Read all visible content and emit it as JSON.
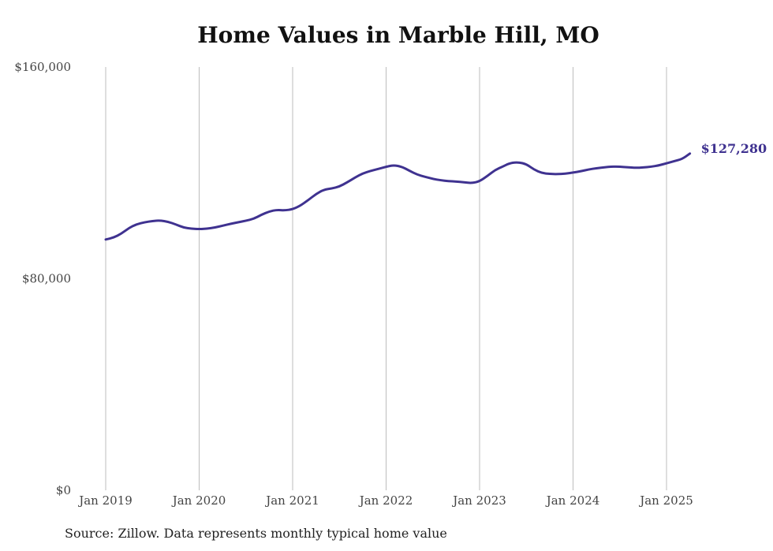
{
  "chart_data": {
    "type": "line",
    "title": "Home Values in Marble Hill, MO",
    "xlabel": "",
    "ylabel": "",
    "ylim": [
      0,
      160000
    ],
    "y_ticks": [
      {
        "value": 0,
        "label": "$0"
      },
      {
        "value": 80000,
        "label": "$80,000"
      },
      {
        "value": 160000,
        "label": "$160,000"
      }
    ],
    "x_ticks": [
      {
        "value": 2019.0,
        "label": "Jan 2019"
      },
      {
        "value": 2020.0,
        "label": "Jan 2020"
      },
      {
        "value": 2021.0,
        "label": "Jan 2021"
      },
      {
        "value": 2022.0,
        "label": "Jan 2022"
      },
      {
        "value": 2023.0,
        "label": "Jan 2023"
      },
      {
        "value": 2024.0,
        "label": "Jan 2024"
      },
      {
        "value": 2025.0,
        "label": "Jan 2025"
      }
    ],
    "xlim": [
      2019.0,
      2025.25
    ],
    "grid": "vertical",
    "line_color": "#3f3290",
    "end_label": "$127,280",
    "series": [
      {
        "x": [
          2019.0,
          2019.083,
          2019.167,
          2019.25,
          2019.333,
          2019.417,
          2019.5,
          2019.583,
          2019.667,
          2019.75,
          2019.833,
          2019.917,
          2020.0,
          2020.083,
          2020.167,
          2020.25,
          2020.333,
          2020.417,
          2020.5,
          2020.583,
          2020.667,
          2020.75,
          2020.833,
          2020.917,
          2021.0,
          2021.083,
          2021.167,
          2021.25,
          2021.333,
          2021.417,
          2021.5,
          2021.583,
          2021.667,
          2021.75,
          2021.833,
          2021.917,
          2022.0,
          2022.083,
          2022.167,
          2022.25,
          2022.333,
          2022.417,
          2022.5,
          2022.583,
          2022.667,
          2022.75,
          2022.833,
          2022.917,
          2023.0,
          2023.083,
          2023.167,
          2023.25,
          2023.333,
          2023.417,
          2023.5,
          2023.583,
          2023.667,
          2023.75,
          2023.833,
          2023.917,
          2024.0,
          2024.083,
          2024.167,
          2024.25,
          2024.333,
          2024.417,
          2024.5,
          2024.583,
          2024.667,
          2024.75,
          2024.833,
          2024.917,
          2025.0,
          2025.083,
          2025.167,
          2025.25
        ],
        "values": [
          94800,
          95500,
          97000,
          99200,
          100600,
          101300,
          101800,
          102000,
          101500,
          100500,
          99300,
          98900,
          98700,
          98900,
          99300,
          100000,
          100700,
          101300,
          101900,
          102600,
          104200,
          105400,
          106000,
          105800,
          106200,
          107600,
          109700,
          112000,
          113600,
          114100,
          114800,
          116400,
          118200,
          119800,
          120700,
          121500,
          122300,
          122900,
          122300,
          120800,
          119300,
          118500,
          117700,
          117200,
          116900,
          116700,
          116400,
          116100,
          116800,
          118800,
          121100,
          122400,
          123800,
          124000,
          123300,
          121200,
          119900,
          119600,
          119500,
          119700,
          120100,
          120600,
          121300,
          121700,
          122100,
          122400,
          122300,
          122100,
          121900,
          122000,
          122300,
          122800,
          123600,
          124400,
          125200,
          127280
        ]
      }
    ]
  },
  "footer": {
    "source": "Source: Zillow. Data represents monthly typical home value"
  }
}
